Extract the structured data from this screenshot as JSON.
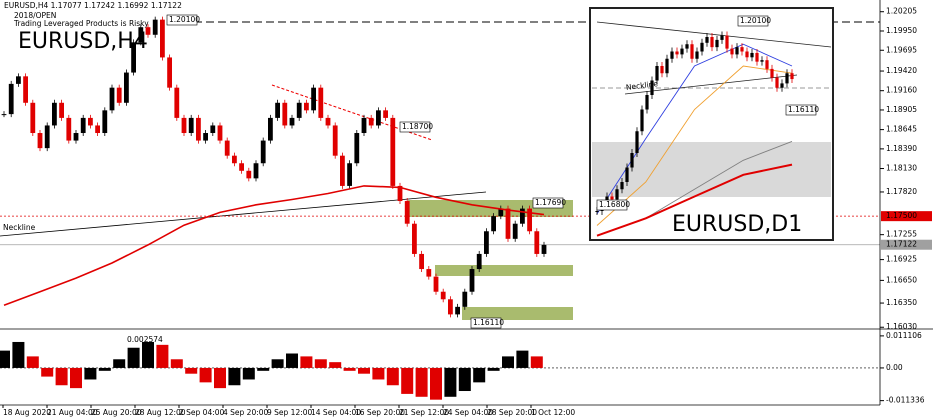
{
  "header": {
    "symbol_info": "EURUSD,H4  1.17077 1.17242 1.16992 1.17122",
    "template": "2018/OPEN",
    "warning": "Trading Leveraged Products is Risky"
  },
  "chart_data": [
    {
      "type": "candlestick",
      "title": "EURUSD,H4",
      "up_color": "#000000",
      "down_color": "#e00000",
      "close": [
        1.1885,
        1.1925,
        1.1935,
        1.19,
        1.186,
        1.184,
        1.187,
        1.19,
        1.188,
        1.185,
        1.186,
        1.188,
        1.187,
        1.186,
        1.189,
        1.192,
        1.19,
        1.194,
        1.198,
        1.2,
        1.199,
        1.201,
        1.196,
        1.192,
        1.188,
        1.186,
        1.188,
        1.185,
        1.186,
        1.187,
        1.185,
        1.183,
        1.182,
        1.181,
        1.18,
        1.182,
        1.185,
        1.188,
        1.19,
        1.187,
        1.188,
        1.19,
        1.189,
        1.192,
        1.188,
        1.187,
        1.183,
        1.179,
        1.182,
        1.186,
        1.188,
        1.187,
        1.189,
        1.188,
        1.179,
        1.177,
        1.174,
        1.17,
        1.168,
        1.167,
        1.165,
        1.164,
        1.162,
        1.163,
        1.165,
        1.168,
        1.17,
        1.173,
        1.175,
        1.176,
        1.172,
        1.174,
        1.176,
        1.173,
        1.17,
        1.1712
      ],
      "ma": {
        "color": "#e00000",
        "values": [
          1.1632,
          1.165,
          1.1668,
          1.1688,
          1.1712,
          1.1738,
          1.1755,
          1.1765,
          1.1772,
          1.178,
          1.179,
          1.1788,
          1.1775,
          1.1765,
          1.1758,
          1.1752
        ]
      },
      "ylim": [
        1.1602,
        1.2036
      ],
      "yticks": [
        1.20205,
        {
          "value": 1.1995,
          "label": "1.19950"
        },
        1.19695,
        {
          "value": 1.1942,
          "label": "1.19420"
        },
        {
          "value": 1.1916,
          "label": "1.19160"
        },
        1.18905,
        1.18645,
        {
          "value": 1.1839,
          "label": "1.18390"
        },
        {
          "value": 1.1813,
          "label": "1.18130"
        },
        {
          "value": 1.1782,
          "label": "1.17820"
        },
        1.17255,
        1.16925,
        {
          "value": 1.1665,
          "label": "1.16650"
        },
        {
          "value": 1.1635,
          "label": "1.16350"
        },
        {
          "value": 1.1603,
          "label": "1.16030"
        }
      ],
      "levels": [
        {
          "value": 1.175,
          "label": "1.17500",
          "color": "#e00000"
        },
        {
          "value": 1.17122,
          "label": "1.17122",
          "color": "#a0a0a0"
        }
      ],
      "x_labels": [
        "18 Aug 2020",
        "21 Aug 04:00",
        "25 Aug 20:00",
        "28 Aug 12:00",
        "2 Sep 04:00",
        "4 Sep 20:00",
        "9 Sep 12:00",
        "14 Sep 04:00",
        "16 Sep 20:00",
        "21 Sep 12:00",
        "24 Sep 04:00",
        "28 Sep 20:00",
        "1 Oct 12:00"
      ],
      "annotations": [
        "1.20100",
        "1.18700",
        "1.17690",
        "1.16110",
        "Neckline"
      ]
    },
    {
      "type": "bar",
      "value_label": "0.002574",
      "up_color": "#000000",
      "down_color": "#e00000",
      "values": [
        0.006,
        0.009,
        0.004,
        -0.003,
        -0.006,
        -0.007,
        -0.004,
        -0.001,
        0.003,
        0.007,
        0.009,
        0.008,
        0.003,
        -0.002,
        -0.005,
        -0.007,
        -0.006,
        -0.004,
        -0.001,
        0.003,
        0.005,
        0.004,
        0.003,
        0.002,
        -0.001,
        -0.002,
        -0.004,
        -0.006,
        -0.009,
        -0.01,
        -0.011,
        -0.01,
        -0.008,
        -0.005,
        -0.001,
        0.004,
        0.006,
        0.004
      ],
      "ylim": [
        -0.0125,
        0.0128
      ],
      "yticks": [
        0.011106,
        {
          "value": 0,
          "label": "0.00"
        },
        -0.011336
      ]
    },
    {
      "type": "candlestick",
      "title": "EURUSD,D1",
      "up_color": "#000000",
      "down_color": "#e00000",
      "close": [
        1.08,
        1.085,
        1.09,
        1.088,
        1.095,
        1.1,
        1.11,
        1.12,
        1.135,
        1.15,
        1.16,
        1.17,
        1.18,
        1.175,
        1.185,
        1.19,
        1.188,
        1.192,
        1.195,
        1.185,
        1.19,
        1.196,
        1.2,
        1.193,
        1.198,
        1.201,
        1.192,
        1.188,
        1.193,
        1.19,
        1.186,
        1.189,
        1.183,
        1.184,
        1.178,
        1.172,
        1.165,
        1.168,
        1.175,
        1.171
      ],
      "ylim": [
        1.06,
        1.22
      ],
      "series": [
        {
          "color": "#3040e0",
          "values": [
            1.078,
            1.13,
            1.18,
            1.195,
            1.18
          ]
        },
        {
          "color": "#f0a030",
          "values": [
            1.07,
            1.1,
            1.15,
            1.18,
            1.175
          ]
        },
        {
          "color": "#808080",
          "values": [
            null,
            1.075,
            1.095,
            1.115,
            1.128
          ]
        },
        {
          "color": "#e00000",
          "values": [
            1.063,
            1.075,
            1.09,
            1.105,
            1.112
          ]
        }
      ],
      "annotations": [
        "1.20100",
        "1.16110",
        "1.16800",
        "Neckline"
      ]
    }
  ]
}
